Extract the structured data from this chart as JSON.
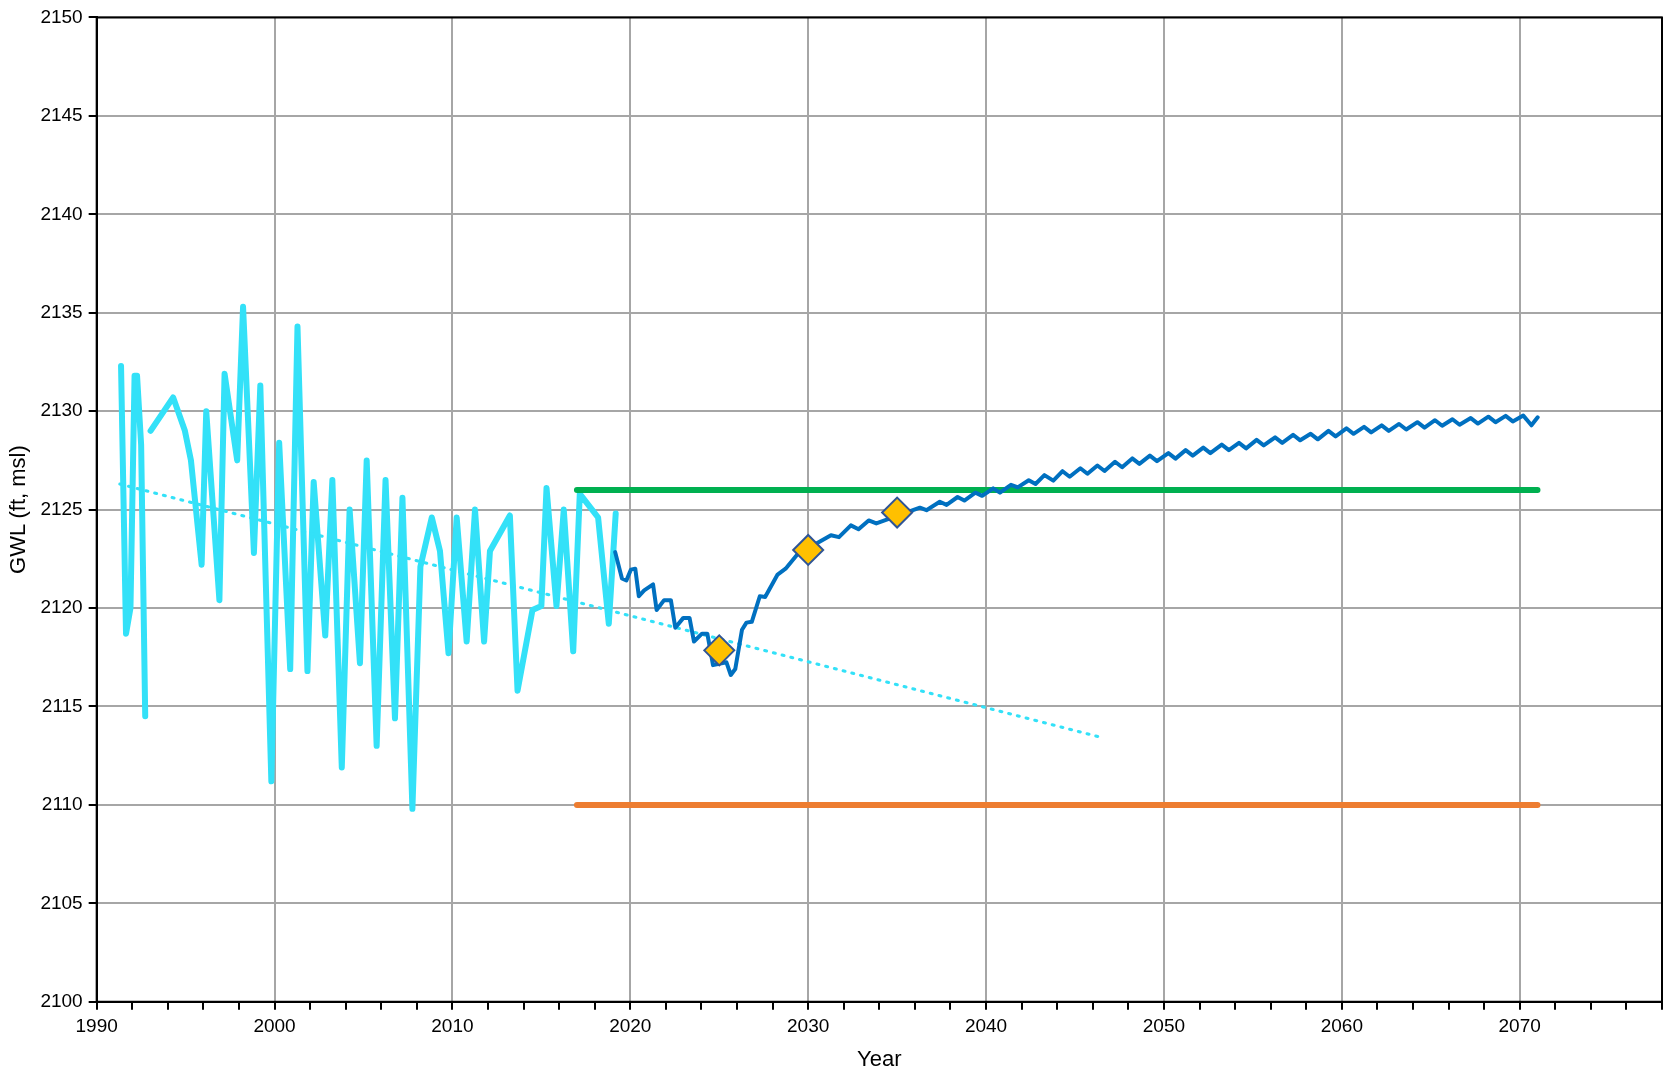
{
  "chart_data": {
    "type": "line",
    "xlabel": "Year",
    "ylabel": "GWL (ft, msl)",
    "xlim": [
      1990,
      2078
    ],
    "xticks": [
      1990,
      {
        "value": 1992,
        "label": null
      },
      {
        "value": 1994,
        "label": null
      },
      {
        "value": 1996,
        "label": null
      },
      {
        "value": 1998,
        "label": null
      },
      2000,
      {
        "value": 2002,
        "label": null
      },
      {
        "value": 2004,
        "label": null
      },
      {
        "value": 2006,
        "label": null
      },
      {
        "value": 2008,
        "label": null
      },
      2010,
      {
        "value": 2012,
        "label": null
      },
      {
        "value": 2014,
        "label": null
      },
      {
        "value": 2016,
        "label": null
      },
      {
        "value": 2018,
        "label": null
      },
      2020,
      {
        "value": 2022,
        "label": null
      },
      {
        "value": 2024,
        "label": null
      },
      {
        "value": 2026,
        "label": null
      },
      {
        "value": 2028,
        "label": null
      },
      2030,
      {
        "value": 2032,
        "label": null
      },
      {
        "value": 2034,
        "label": null
      },
      {
        "value": 2036,
        "label": null
      },
      {
        "value": 2038,
        "label": null
      },
      2040,
      {
        "value": 2042,
        "label": null
      },
      {
        "value": 2044,
        "label": null
      },
      {
        "value": 2046,
        "label": null
      },
      {
        "value": 2048,
        "label": null
      },
      2050,
      {
        "value": 2052,
        "label": null
      },
      {
        "value": 2054,
        "label": null
      },
      {
        "value": 2056,
        "label": null
      },
      {
        "value": 2058,
        "label": null
      },
      2060,
      {
        "value": 2062,
        "label": null
      },
      {
        "value": 2064,
        "label": null
      },
      {
        "value": 2066,
        "label": null
      },
      {
        "value": 2068,
        "label": null
      },
      2070,
      {
        "value": 2072,
        "label": null
      },
      {
        "value": 2074,
        "label": null
      },
      {
        "value": 2076,
        "label": null
      },
      {
        "value": 2078,
        "label": null
      }
    ],
    "ylim": [
      2100,
      2150
    ],
    "yticks": [
      2100,
      2105,
      2110,
      2115,
      2120,
      2125,
      2130,
      2135,
      2140,
      2145,
      2150
    ],
    "grid": true,
    "legend": false,
    "series": [
      {
        "type": "line",
        "color": "#33e1f8",
        "marker": "none",
        "line_style": "solid",
        "x": [
          1991.37,
          1991.65,
          1991.9,
          1992.13,
          1992.27,
          1992.5,
          1992.73,
          1992.9,
          1993.03,
          1994.3,
          1994.96,
          1995.3,
          1995.9,
          1996.16,
          1996.9,
          1997.19,
          1997.9,
          1998.23,
          1998.84,
          1999.2,
          1999.82,
          2000.26,
          2000.88,
          2001.29,
          2001.85,
          2002.2,
          2002.85,
          2003.25,
          2003.78,
          2004.22,
          2004.8,
          2005.18,
          2005.74,
          2006.24,
          2006.77,
          2007.19,
          2007.75,
          2008.2,
          2008.84,
          2009.3,
          2009.78,
          2010.24,
          2010.8,
          2011.27,
          2011.78,
          2012.11,
          2013.23,
          2013.66,
          2014.5,
          2015.0,
          2015.29,
          2015.85,
          2016.26,
          2016.79,
          2017.16,
          2018.19,
          2018.79,
          2019.18
        ],
        "values": [
          2132.3,
          2118.7,
          2120.0,
          2131.8,
          2131.8,
          2128.3,
          2114.5,
          null,
          2129.0,
          2130.7,
          2129.0,
          2127.5,
          2122.2,
          2130.0,
          2120.4,
          2131.9,
          2127.5,
          2135.3,
          2122.8,
          2131.3,
          2111.2,
          2128.4,
          2116.9,
          2134.3,
          2116.8,
          2126.4,
          2118.6,
          2126.5,
          2111.9,
          2125.0,
          2117.2,
          2127.5,
          2113.0,
          2126.5,
          2114.4,
          2125.6,
          2109.8,
          2122.1,
          2124.6,
          2122.9,
          2117.7,
          2124.6,
          2118.3,
          2125.0,
          2118.3,
          2122.9,
          2124.7,
          2115.8,
          2119.9,
          2120.1,
          2126.1,
          2120.1,
          2125.0,
          2117.8,
          2125.8,
          2124.6,
          2119.2,
          2124.8
        ]
      },
      {
        "type": "line",
        "color": "#33e1f8",
        "marker": "none",
        "line_style": "dotted",
        "x": [
          1991.3,
          2046.6
        ],
        "values": [
          2126.3,
          2113.4
        ]
      },
      {
        "type": "line",
        "color": "#00b050",
        "marker": "none",
        "line_style": "solid",
        "x": [
          2017,
          2071
        ],
        "values": [
          2126,
          2126
        ]
      },
      {
        "type": "line",
        "color": "#ed7d31",
        "marker": "none",
        "line_style": "solid",
        "x": [
          2017,
          2071
        ],
        "values": [
          2110,
          2110
        ]
      },
      {
        "type": "line",
        "color": "#0070c0",
        "marker": "none",
        "line_style": "solid",
        "x": [
          2019.15,
          2019.53,
          2019.78,
          2020.03,
          2020.28,
          2020.48,
          2020.78,
          2021.28,
          2021.48,
          2021.9,
          2022.28,
          2022.53,
          2022.98,
          2023.33,
          2023.58,
          2024.03,
          2024.33,
          2024.65,
          2025.4,
          2025.65,
          2025.9,
          2026.28,
          2026.53,
          2026.83,
          2027.28,
          2027.58,
          2028.28,
          2028.73,
          2029.4,
          2031.28,
          2031.73,
          2032.4,
          2032.83,
          2033.4,
          2033.83,
          2036.28,
          2036.65,
          2037.4,
          2037.78,
          2038.4,
          2038.78,
          2039.4,
          2039.78,
          2040.4,
          2040.78,
          2041.4,
          2041.78,
          2042.4,
          2042.78,
          2043.28,
          2043.78,
          2044.3,
          2044.7,
          2045.3,
          2045.7,
          2046.26,
          2046.66,
          2047.25,
          2047.65,
          2048.22,
          2048.62,
          2049.21,
          2049.61,
          2050.25,
          2050.65,
          2051.22,
          2051.62,
          2052.21,
          2052.61,
          2053.25,
          2053.65,
          2054.22,
          2054.62,
          2055.21,
          2055.61,
          2056.25,
          2056.65,
          2057.26,
          2057.66,
          2058.25,
          2058.65,
          2059.25,
          2059.65,
          2060.26,
          2060.66,
          2061.25,
          2061.65,
          2062.24,
          2062.64,
          2063.22,
          2063.62,
          2064.25,
          2064.65,
          2065.24,
          2065.64,
          2066.22,
          2066.62,
          2067.25,
          2067.65,
          2068.24,
          2068.64,
          2069.21,
          2069.61,
          2070.2,
          2070.66,
          2071.01
        ],
        "values": [
          2122.84,
          2121.5,
          2121.4,
          2121.95,
          2122.0,
          2120.6,
          2120.9,
          2121.2,
          2119.9,
          2120.4,
          2120.4,
          2119.0,
          2119.5,
          2119.5,
          2118.3,
          2118.7,
          2118.7,
          2117.1,
          2117.25,
          2116.6,
          2116.9,
          2118.9,
          2119.26,
          2119.3,
          2120.6,
          2120.56,
          2121.7,
          2122.0,
          2122.73,
          2123.7,
          2123.6,
          2124.2,
          2124.0,
          2124.45,
          2124.3,
          2125.1,
          2124.97,
          2125.4,
          2125.24,
          2125.64,
          2125.46,
          2125.86,
          2125.7,
          2126.08,
          2125.86,
          2126.26,
          2126.13,
          2126.49,
          2126.3,
          2126.75,
          2126.47,
          2126.95,
          2126.67,
          2127.1,
          2126.82,
          2127.24,
          2126.96,
          2127.43,
          2127.15,
          2127.6,
          2127.32,
          2127.74,
          2127.46,
          2127.87,
          2127.59,
          2128.02,
          2127.74,
          2128.15,
          2127.87,
          2128.3,
          2128.02,
          2128.39,
          2128.11,
          2128.54,
          2128.26,
          2128.67,
          2128.39,
          2128.8,
          2128.52,
          2128.85,
          2128.57,
          2129.0,
          2128.72,
          2129.13,
          2128.85,
          2129.2,
          2128.92,
          2129.28,
          2129.0,
          2129.35,
          2129.07,
          2129.44,
          2129.16,
          2129.54,
          2129.26,
          2129.59,
          2129.31,
          2129.65,
          2129.37,
          2129.72,
          2129.44,
          2129.76,
          2129.48,
          2129.78,
          2129.28,
          2129.69
        ]
      },
      {
        "type": "scatter",
        "color": "#ffc000",
        "marker": "diamond",
        "x": [
          2025,
          2030,
          2035
        ],
        "values": [
          2117.85,
          2122.95,
          2124.85
        ]
      }
    ]
  }
}
